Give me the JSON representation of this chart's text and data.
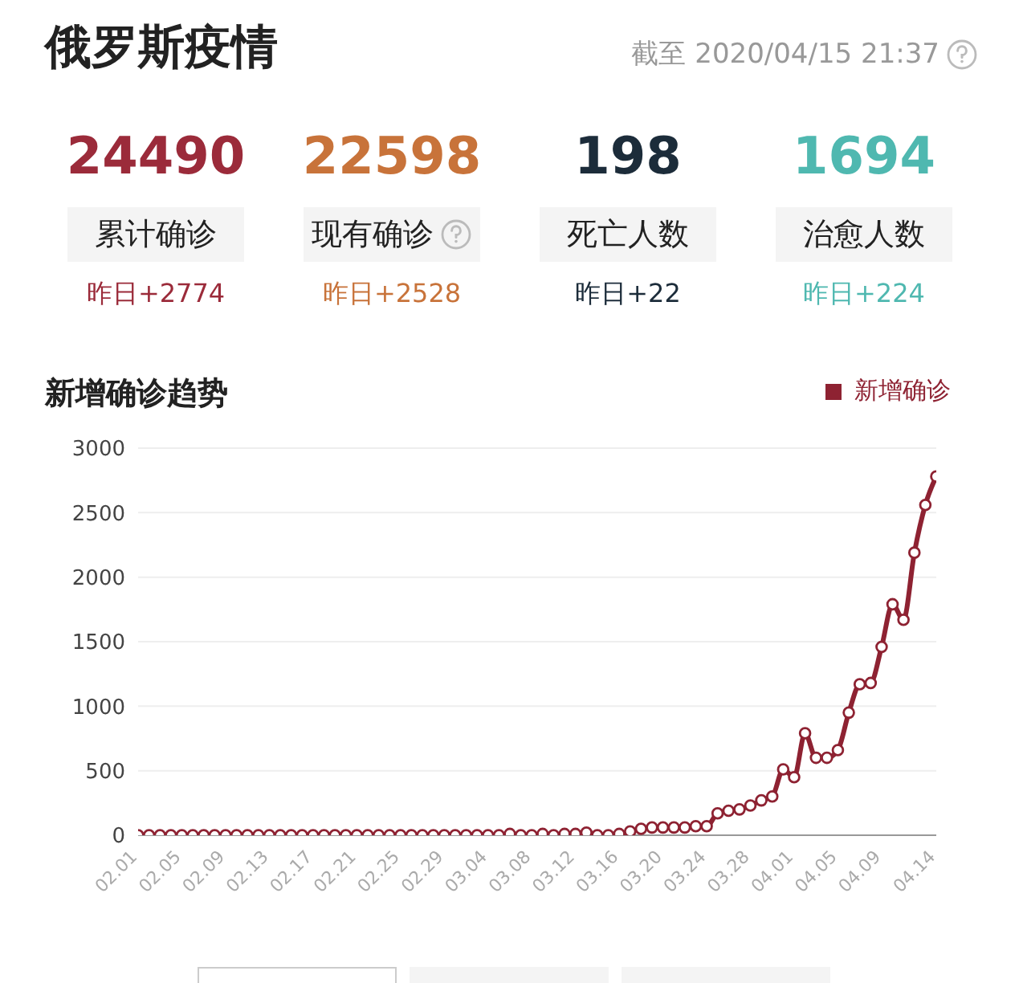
{
  "chart_data": [
    {
      "type": "other",
      "title": "俄罗斯疫情",
      "subtitle": "截至 2020/04/15 21:37",
      "annotations": [
        "24490",
        "累计确诊",
        "昨日+2774",
        "22598",
        "现有确诊",
        "昨日+2528",
        "198",
        "死亡人数",
        "昨日+22",
        "1694",
        "治愈人数",
        "昨日+224"
      ]
    },
    {
      "type": "line",
      "title": "新增确诊趋势",
      "categories": [
        "02.01",
        null,
        null,
        null,
        "02.05",
        null,
        null,
        null,
        "02.09",
        null,
        null,
        null,
        "02.13",
        null,
        null,
        null,
        "02.17",
        null,
        null,
        null,
        "02.21",
        null,
        null,
        null,
        "02.25",
        null,
        null,
        null,
        "02.29",
        null,
        null,
        null,
        "03.04",
        null,
        null,
        null,
        "03.08",
        null,
        null,
        null,
        "03.12",
        null,
        null,
        null,
        "03.16",
        null,
        null,
        null,
        "03.20",
        null,
        null,
        null,
        "03.24",
        null,
        null,
        null,
        "03.28",
        null,
        null,
        null,
        "04.01",
        null,
        null,
        null,
        "04.05",
        null,
        null,
        null,
        "04.09",
        null,
        null,
        null,
        null,
        "04.14"
      ],
      "series": [
        {
          "name": "新增确诊",
          "color": "#8e2232",
          "values": [
            0,
            0,
            0,
            0,
            0,
            0,
            0,
            0,
            0,
            0,
            0,
            0,
            0,
            0,
            0,
            0,
            0,
            0,
            0,
            0,
            0,
            0,
            0,
            0,
            0,
            0,
            0,
            0,
            0,
            0,
            0,
            0,
            0,
            0,
            10,
            0,
            0,
            10,
            0,
            10,
            10,
            20,
            0,
            0,
            10,
            30,
            50,
            60,
            60,
            60,
            60,
            70,
            70,
            170,
            190,
            200,
            230,
            270,
            300,
            510,
            450,
            790,
            600,
            600,
            660,
            950,
            1170,
            1180,
            1460,
            1790,
            1670,
            2190,
            2560,
            2780
          ]
        }
      ],
      "ylim": [
        0,
        3000
      ],
      "yticks": [
        0,
        500,
        1000,
        1500,
        2000,
        2500,
        3000
      ],
      "grid": "y",
      "legend": "top right",
      "marker": "circle",
      "line_style": "solid"
    }
  ]
}
